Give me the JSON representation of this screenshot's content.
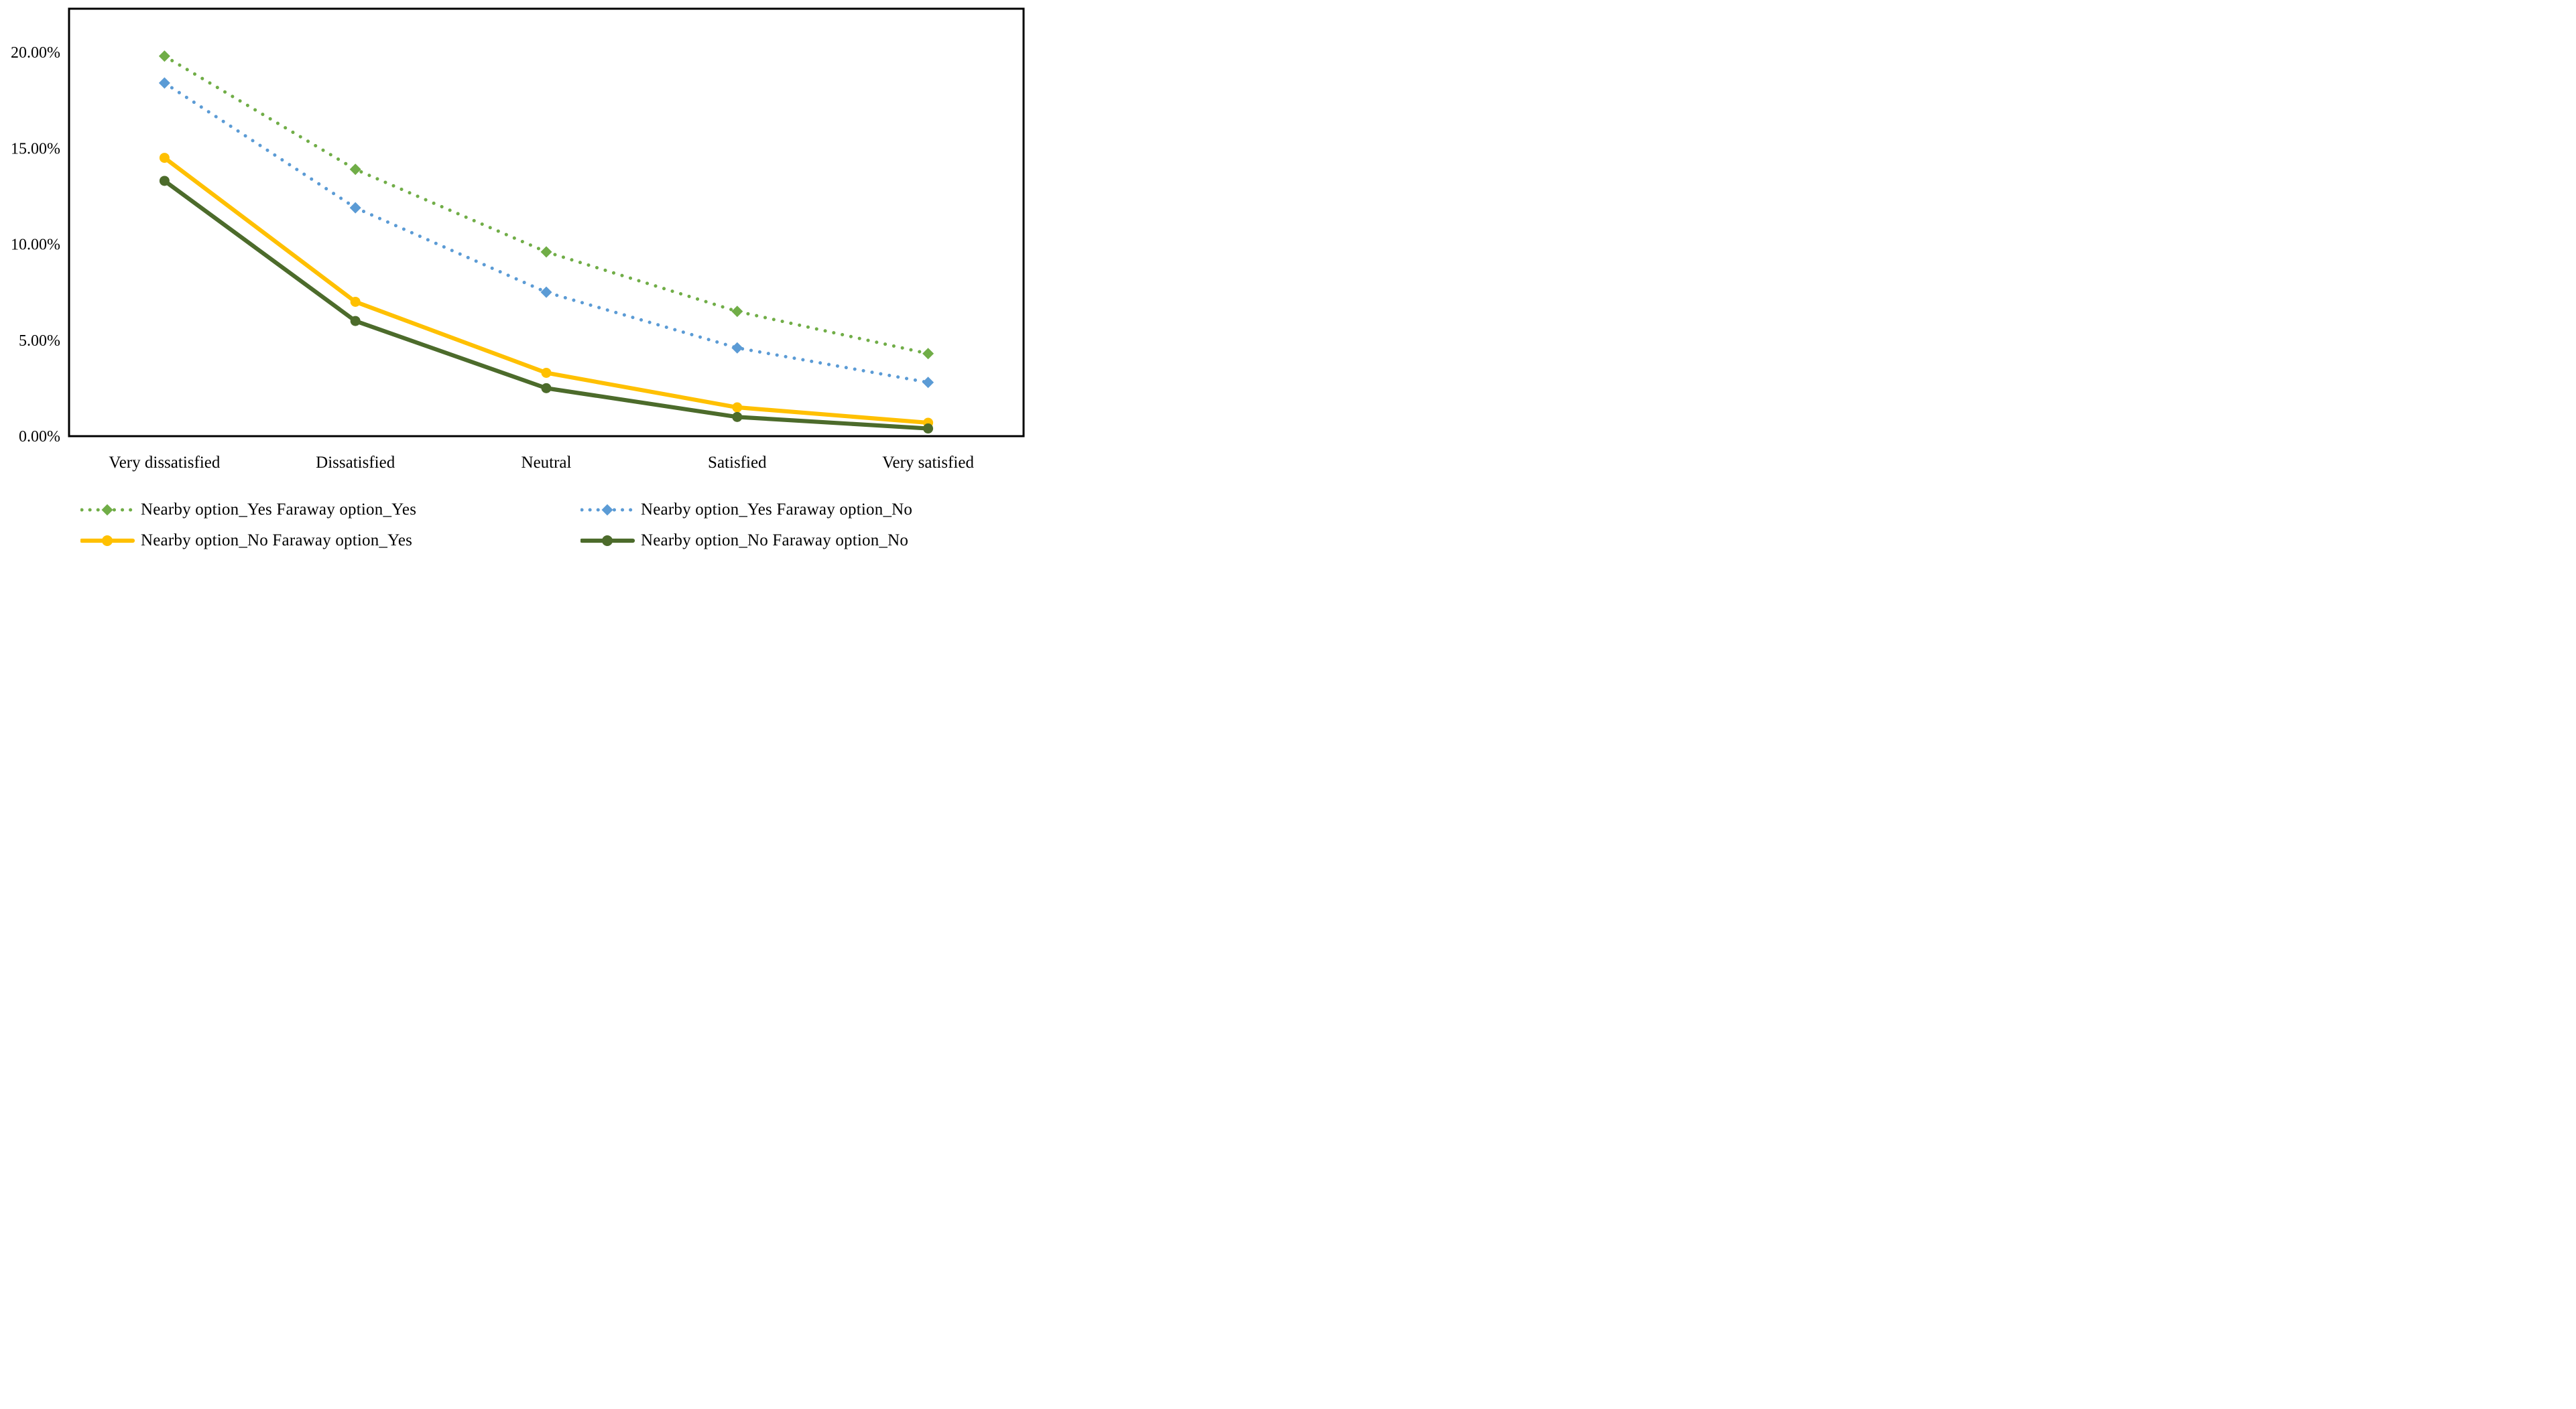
{
  "figure": {
    "background_color": "#FFFFFF",
    "axis_color": "#000000",
    "text_color": "#000000"
  },
  "chart_data": {
    "type": "line",
    "title": "",
    "xlabel": "",
    "ylabel": "",
    "grid": false,
    "legend_position": "bottom",
    "legend_columns": 2,
    "categories": [
      "Very dissatisfied",
      "Dissatisfied",
      "Neutral",
      "Satisfied",
      "Very satisfied"
    ],
    "series": [
      {
        "name": "Nearby option_Yes Faraway option_Yes",
        "values": [
          19.8,
          13.9,
          9.6,
          6.5,
          4.3
        ],
        "color": "#70AD47",
        "line_style": "dotted",
        "marker": "diamond"
      },
      {
        "name": "Nearby option_Yes Faraway option_No",
        "values": [
          18.4,
          11.9,
          7.5,
          4.6,
          2.8
        ],
        "color": "#5B9BD5",
        "line_style": "dotted",
        "marker": "diamond"
      },
      {
        "name": "Nearby option_No Faraway option_Yes",
        "values": [
          14.5,
          7.0,
          3.3,
          1.5,
          0.7
        ],
        "color": "#FFC000",
        "line_style": "solid",
        "marker": "circle"
      },
      {
        "name": "Nearby option_No Faraway option_No",
        "values": [
          13.3,
          6.0,
          2.5,
          1.0,
          0.4
        ],
        "color": "#4C6B2B",
        "line_style": "solid",
        "marker": "circle"
      }
    ],
    "y_axis": {
      "min": 0,
      "max": 20,
      "tick_step": 5,
      "tick_labels": [
        "0.00%",
        "5.00%",
        "10.00%",
        "15.00%",
        "20.00%"
      ]
    }
  }
}
